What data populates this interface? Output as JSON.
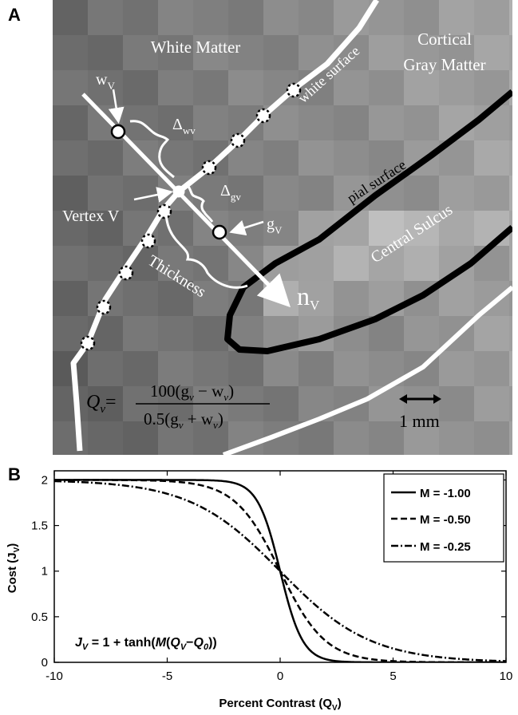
{
  "panel_a": {
    "letter": "A",
    "labels": {
      "white_matter": "White Matter",
      "cortical_1": "Cortical",
      "cortical_2": "Gray Matter",
      "white_surface": "white surface",
      "pial_surface": "pial surface",
      "central_sulcus": "Central Sulcus",
      "vertex": "Vertex V",
      "thickness": "Thickness",
      "w_main": "w",
      "w_sub": "V",
      "g_main": "g",
      "g_sub": "V",
      "dwv_main": "Δ",
      "dwv_sub": "wv",
      "dgv_main": "Δ",
      "dgv_sub": "gv",
      "n_main": "n",
      "n_sub": "V",
      "scale_bar": "1 mm"
    },
    "formula": {
      "lhs": "Q",
      "lhs_sub": "v",
      "eq": "=",
      "numerator": "100(g",
      "num_sub1": "v",
      "num_mid": " − w",
      "num_sub2": "v",
      "num_end": ")",
      "denominator": "0.5(g",
      "den_sub1": "v",
      "den_mid": " + w",
      "den_sub2": "v",
      "den_end": ")"
    },
    "colors": {
      "background": "#7a7a7a",
      "surface_white": "#ffffff",
      "surface_pial": "#000000"
    }
  },
  "panel_b": {
    "letter": "B",
    "formula": {
      "j": "J",
      "j_sub": "V",
      "text1": " = 1 + tanh(",
      "m": "M",
      "text2": "(",
      "q": "Q",
      "q_sub": "V",
      "minus": "−",
      "q0": "Q",
      "q0_sub": "0",
      "text3": "))"
    }
  },
  "chart_data": {
    "type": "line",
    "xlabel": "Percent Contrast (Q",
    "xlabel_sub": "V",
    "xlabel_end": ")",
    "ylabel": "Cost (J",
    "ylabel_sub": "V",
    "ylabel_end": ")",
    "xlim": [
      -10,
      10
    ],
    "ylim": [
      0,
      2.1
    ],
    "x_ticks": [
      "-10",
      "-5",
      "0",
      "5",
      "10"
    ],
    "y_ticks": [
      "0",
      "0.5",
      "1",
      "1.5",
      "2"
    ],
    "x_tick_values": [
      -10,
      -5,
      0,
      5,
      10
    ],
    "y_tick_values": [
      0,
      0.5,
      1,
      1.5,
      2
    ],
    "legend_position": "top-right",
    "series": [
      {
        "name": "M = -1.00",
        "M": -1.0,
        "style": "solid"
      },
      {
        "name": "M = -0.50",
        "M": -0.5,
        "style": "dashed"
      },
      {
        "name": "M = -0.25",
        "M": -0.25,
        "style": "dashdot"
      }
    ]
  }
}
